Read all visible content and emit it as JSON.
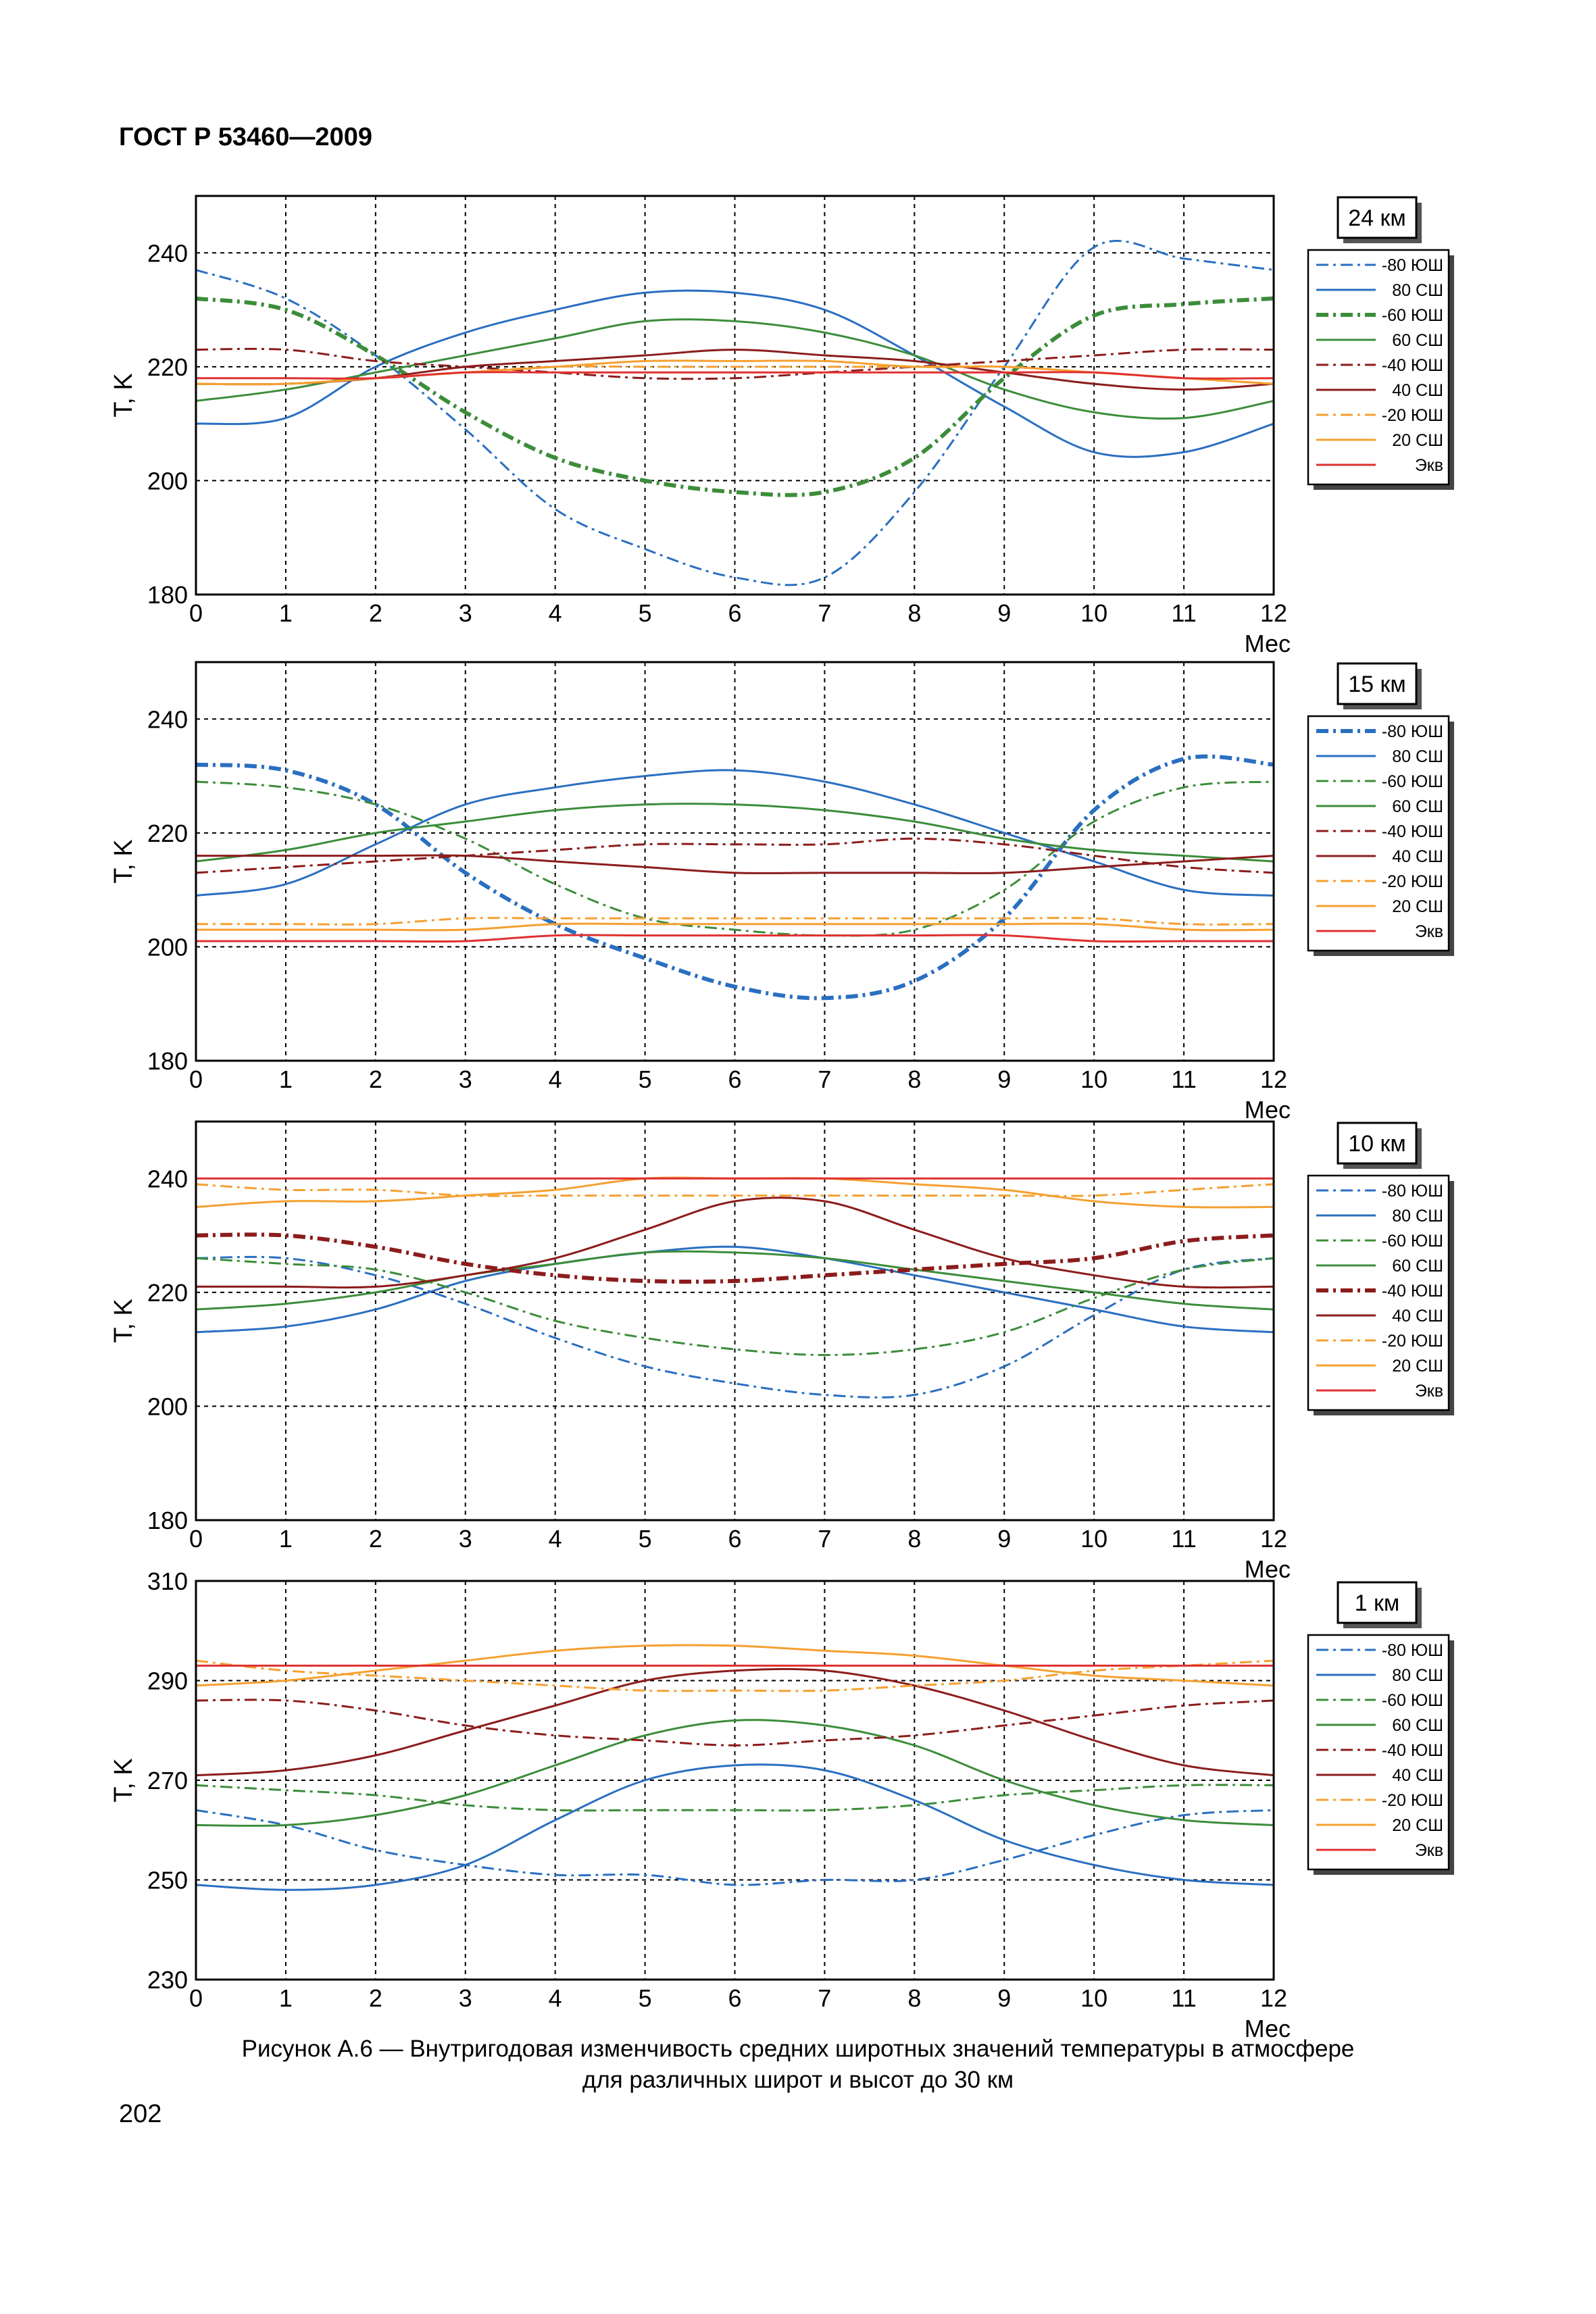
{
  "header": {
    "title": "ГОСТ Р 53460—2009"
  },
  "caption": {
    "line1": "Рисунок  А.6  —  Внутригодовая изменчивость средних широтных значений температуры в атмосфере",
    "line2": "для различных широт и высот до 30 км"
  },
  "page_number": "202",
  "legend_labels": [
    "-80 ЮШ",
    "80 СШ",
    "-60 ЮШ",
    "60 СШ",
    "-40 ЮШ",
    "40 СШ",
    "-20 ЮШ",
    "20 СШ",
    "Экв"
  ],
  "colors": {
    "s80": "#2a6fc1",
    "s60": "#3c8d3a",
    "s40": "#8c1c1c",
    "s20": "#f5a030",
    "s0": "#e03030",
    "grid": "#000000"
  },
  "chart_data": [
    {
      "type": "line",
      "title": "24 км",
      "xlabel": "Мес",
      "ylabel": "T, K",
      "xlim": [
        0,
        12
      ],
      "ylim": [
        180,
        250
      ],
      "yticks": [
        180,
        200,
        220,
        240
      ],
      "xticks": [
        0,
        1,
        2,
        3,
        4,
        5,
        6,
        7,
        8,
        9,
        10,
        11,
        12
      ],
      "grid": true,
      "legend_position": "right",
      "thick_series": "-60 ЮШ",
      "x": [
        0,
        1,
        2,
        3,
        4,
        5,
        6,
        7,
        8,
        9,
        10,
        11,
        12
      ],
      "series": [
        {
          "name": "-80 ЮШ",
          "values": [
            237,
            232,
            222,
            209,
            195,
            188,
            183,
            183,
            198,
            220,
            241,
            239,
            237
          ]
        },
        {
          "name": "80 СШ",
          "values": [
            210,
            211,
            220,
            226,
            230,
            233,
            233,
            230,
            222,
            213,
            205,
            205,
            210
          ]
        },
        {
          "name": "-60 ЮШ",
          "values": [
            232,
            230,
            222,
            212,
            204,
            200,
            198,
            198,
            204,
            218,
            229,
            231,
            232
          ]
        },
        {
          "name": "60 СШ",
          "values": [
            214,
            216,
            219,
            222,
            225,
            228,
            228,
            226,
            222,
            216,
            212,
            211,
            214
          ]
        },
        {
          "name": "-40 ЮШ",
          "values": [
            223,
            223,
            221,
            220,
            219,
            218,
            218,
            219,
            220,
            221,
            222,
            223,
            223
          ]
        },
        {
          "name": "40 СШ",
          "values": [
            217,
            217,
            218,
            220,
            221,
            222,
            223,
            222,
            221,
            219,
            217,
            216,
            217
          ]
        },
        {
          "name": "-20 ЮШ",
          "values": [
            217,
            217,
            218,
            219,
            220,
            220,
            220,
            220,
            220,
            220,
            219,
            218,
            217
          ]
        },
        {
          "name": "20 СШ",
          "values": [
            217,
            217,
            218,
            219,
            220,
            221,
            221,
            221,
            220,
            220,
            219,
            218,
            217
          ]
        },
        {
          "name": "Экв",
          "values": [
            218,
            218,
            218,
            219,
            219,
            219,
            219,
            219,
            219,
            219,
            219,
            218,
            218
          ]
        }
      ]
    },
    {
      "type": "line",
      "title": "15 км",
      "xlabel": "Мес",
      "ylabel": "T, K",
      "xlim": [
        0,
        12
      ],
      "ylim": [
        180,
        250
      ],
      "yticks": [
        180,
        200,
        220,
        240
      ],
      "xticks": [
        0,
        1,
        2,
        3,
        4,
        5,
        6,
        7,
        8,
        9,
        10,
        11,
        12
      ],
      "grid": true,
      "legend_position": "right",
      "thick_series": "-80 ЮШ",
      "x": [
        0,
        1,
        2,
        3,
        4,
        5,
        6,
        7,
        8,
        9,
        10,
        11,
        12
      ],
      "series": [
        {
          "name": "-80 ЮШ",
          "values": [
            232,
            231,
            225,
            213,
            204,
            198,
            193,
            191,
            194,
            205,
            224,
            233,
            232
          ]
        },
        {
          "name": "80 СШ",
          "values": [
            209,
            211,
            218,
            225,
            228,
            230,
            231,
            229,
            225,
            220,
            215,
            210,
            209
          ]
        },
        {
          "name": "-60 ЮШ",
          "values": [
            229,
            228,
            225,
            219,
            211,
            205,
            203,
            202,
            203,
            210,
            222,
            228,
            229
          ]
        },
        {
          "name": "60 СШ",
          "values": [
            215,
            217,
            220,
            222,
            224,
            225,
            225,
            224,
            222,
            219,
            217,
            216,
            215
          ]
        },
        {
          "name": "-40 ЮШ",
          "values": [
            213,
            214,
            215,
            216,
            217,
            218,
            218,
            218,
            219,
            218,
            216,
            214,
            213
          ]
        },
        {
          "name": "40 СШ",
          "values": [
            216,
            216,
            216,
            216,
            215,
            214,
            213,
            213,
            213,
            213,
            214,
            215,
            216
          ]
        },
        {
          "name": "-20 ЮШ",
          "values": [
            204,
            204,
            204,
            205,
            205,
            205,
            205,
            205,
            205,
            205,
            205,
            204,
            204
          ]
        },
        {
          "name": "20 СШ",
          "values": [
            203,
            203,
            203,
            203,
            204,
            204,
            204,
            204,
            204,
            204,
            204,
            203,
            203
          ]
        },
        {
          "name": "Экв",
          "values": [
            201,
            201,
            201,
            201,
            202,
            202,
            202,
            202,
            202,
            202,
            201,
            201,
            201
          ]
        }
      ]
    },
    {
      "type": "line",
      "title": "10 км",
      "xlabel": "Мес",
      "ylabel": "T, K",
      "xlim": [
        0,
        12
      ],
      "ylim": [
        180,
        250
      ],
      "yticks": [
        180,
        200,
        220,
        240
      ],
      "xticks": [
        0,
        1,
        2,
        3,
        4,
        5,
        6,
        7,
        8,
        9,
        10,
        11,
        12
      ],
      "grid": true,
      "legend_position": "right",
      "thick_series": "-40 ЮШ",
      "x": [
        0,
        1,
        2,
        3,
        4,
        5,
        6,
        7,
        8,
        9,
        10,
        11,
        12
      ],
      "series": [
        {
          "name": "-80 ЮШ",
          "values": [
            226,
            226,
            223,
            218,
            212,
            207,
            204,
            202,
            202,
            207,
            216,
            224,
            226
          ]
        },
        {
          "name": "80 СШ",
          "values": [
            213,
            214,
            217,
            222,
            225,
            227,
            228,
            226,
            223,
            220,
            217,
            214,
            213
          ]
        },
        {
          "name": "-60 ЮШ",
          "values": [
            226,
            225,
            224,
            220,
            215,
            212,
            210,
            209,
            210,
            213,
            219,
            224,
            226
          ]
        },
        {
          "name": "60 СШ",
          "values": [
            217,
            218,
            220,
            223,
            225,
            227,
            227,
            226,
            224,
            222,
            220,
            218,
            217
          ]
        },
        {
          "name": "-40 ЮШ",
          "values": [
            230,
            230,
            228,
            225,
            223,
            222,
            222,
            223,
            224,
            225,
            226,
            229,
            230
          ]
        },
        {
          "name": "40 СШ",
          "values": [
            221,
            221,
            221,
            223,
            226,
            231,
            236,
            236,
            231,
            226,
            223,
            221,
            221
          ]
        },
        {
          "name": "-20 ЮШ",
          "values": [
            239,
            238,
            238,
            237,
            237,
            237,
            237,
            237,
            237,
            237,
            237,
            238,
            239
          ]
        },
        {
          "name": "20 СШ",
          "values": [
            235,
            236,
            236,
            237,
            238,
            240,
            240,
            240,
            239,
            238,
            236,
            235,
            235
          ]
        },
        {
          "name": "Экв",
          "values": [
            240,
            240,
            240,
            240,
            240,
            240,
            240,
            240,
            240,
            240,
            240,
            240,
            240
          ]
        }
      ]
    },
    {
      "type": "line",
      "title": "1 км",
      "xlabel": "Мес",
      "ylabel": "T, K",
      "xlim": [
        0,
        12
      ],
      "ylim": [
        230,
        310
      ],
      "yticks": [
        230,
        250,
        270,
        290,
        310
      ],
      "xticks": [
        0,
        1,
        2,
        3,
        4,
        5,
        6,
        7,
        8,
        9,
        10,
        11,
        12
      ],
      "grid": true,
      "legend_position": "right",
      "thick_series": "",
      "x": [
        0,
        1,
        2,
        3,
        4,
        5,
        6,
        7,
        8,
        9,
        10,
        11,
        12
      ],
      "series": [
        {
          "name": "-80 ЮШ",
          "values": [
            264,
            261,
            256,
            253,
            251,
            251,
            249,
            250,
            250,
            254,
            259,
            263,
            264
          ]
        },
        {
          "name": "80 СШ",
          "values": [
            249,
            248,
            249,
            253,
            262,
            270,
            273,
            272,
            266,
            258,
            253,
            250,
            249
          ]
        },
        {
          "name": "-60 ЮШ",
          "values": [
            269,
            268,
            267,
            265,
            264,
            264,
            264,
            264,
            265,
            267,
            268,
            269,
            269
          ]
        },
        {
          "name": "60 СШ",
          "values": [
            261,
            261,
            263,
            267,
            273,
            279,
            282,
            281,
            277,
            270,
            265,
            262,
            261
          ]
        },
        {
          "name": "-40 ЮШ",
          "values": [
            286,
            286,
            284,
            281,
            279,
            278,
            277,
            278,
            279,
            281,
            283,
            285,
            286
          ]
        },
        {
          "name": "40 СШ",
          "values": [
            271,
            272,
            275,
            280,
            285,
            290,
            292,
            292,
            289,
            284,
            278,
            273,
            271
          ]
        },
        {
          "name": "-20 ЮШ",
          "values": [
            294,
            292,
            291,
            290,
            289,
            288,
            288,
            288,
            289,
            290,
            292,
            293,
            294
          ]
        },
        {
          "name": "20 СШ",
          "values": [
            289,
            290,
            292,
            294,
            296,
            297,
            297,
            296,
            295,
            293,
            291,
            290,
            289
          ]
        },
        {
          "name": "Экв",
          "values": [
            293,
            293,
            293,
            293,
            293,
            293,
            293,
            293,
            293,
            293,
            293,
            293,
            293
          ]
        }
      ]
    }
  ]
}
